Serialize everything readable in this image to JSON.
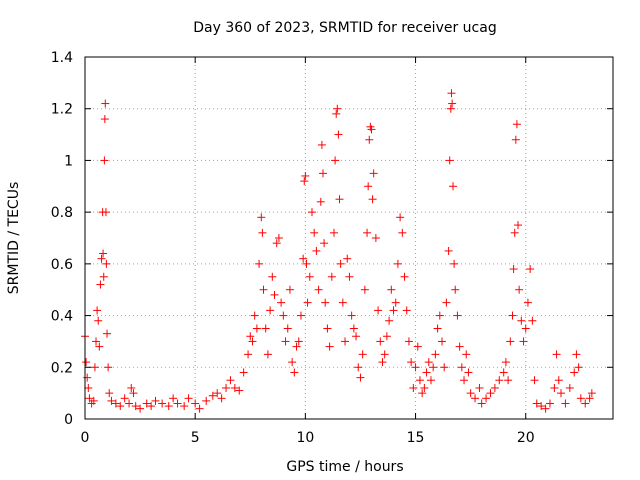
{
  "chart_data": {
    "type": "scatter",
    "title": "Day 360 of 2023, SRMTID for receiver ucag",
    "xlabel": "GPS time / hours",
    "ylabel": "SRMTID / TECUs",
    "xlim": [
      0,
      23.96
    ],
    "ylim": [
      0,
      1.4
    ],
    "xticks": [
      0,
      5,
      10,
      15,
      20
    ],
    "xtick_labels": [
      "0",
      "5",
      "10",
      "15",
      "20"
    ],
    "yticks": [
      0,
      0.2,
      0.4,
      0.6,
      0.8,
      1.0,
      1.2,
      1.4
    ],
    "ytick_labels": [
      "0",
      "0.2",
      "0.4",
      "0.6",
      "0.8",
      "1",
      "1.2",
      "1.4"
    ],
    "grid": true,
    "marker": "+",
    "marker_color": "#ff0000",
    "series": [
      {
        "name": "ucag",
        "points": [
          [
            0.0,
            0.32
          ],
          [
            0.05,
            0.22
          ],
          [
            0.1,
            0.16
          ],
          [
            0.15,
            0.12
          ],
          [
            0.2,
            0.08
          ],
          [
            0.3,
            0.06
          ],
          [
            0.4,
            0.07
          ],
          [
            0.45,
            0.2
          ],
          [
            0.5,
            0.3
          ],
          [
            0.55,
            0.42
          ],
          [
            0.6,
            0.38
          ],
          [
            0.65,
            0.28
          ],
          [
            0.7,
            0.52
          ],
          [
            0.75,
            0.62
          ],
          [
            0.8,
            0.8
          ],
          [
            0.82,
            0.64
          ],
          [
            0.85,
            0.55
          ],
          [
            0.88,
            1.0
          ],
          [
            0.9,
            1.16
          ],
          [
            0.92,
            1.22
          ],
          [
            0.95,
            0.8
          ],
          [
            0.97,
            0.6
          ],
          [
            1.0,
            0.33
          ],
          [
            1.05,
            0.2
          ],
          [
            1.1,
            0.1
          ],
          [
            1.2,
            0.07
          ],
          [
            1.4,
            0.06
          ],
          [
            1.6,
            0.05
          ],
          [
            1.8,
            0.08
          ],
          [
            2.0,
            0.06
          ],
          [
            2.1,
            0.12
          ],
          [
            2.2,
            0.1
          ],
          [
            2.3,
            0.05
          ],
          [
            2.5,
            0.04
          ],
          [
            2.8,
            0.06
          ],
          [
            3.0,
            0.05
          ],
          [
            3.2,
            0.07
          ],
          [
            3.5,
            0.06
          ],
          [
            3.8,
            0.05
          ],
          [
            4.0,
            0.08
          ],
          [
            4.2,
            0.06
          ],
          [
            4.5,
            0.05
          ],
          [
            4.7,
            0.08
          ],
          [
            5.0,
            0.06
          ],
          [
            5.2,
            0.04
          ],
          [
            5.5,
            0.07
          ],
          [
            5.8,
            0.09
          ],
          [
            6.0,
            0.1
          ],
          [
            6.2,
            0.08
          ],
          [
            6.4,
            0.12
          ],
          [
            6.6,
            0.15
          ],
          [
            6.8,
            0.12
          ],
          [
            7.0,
            0.11
          ],
          [
            7.2,
            0.18
          ],
          [
            7.4,
            0.25
          ],
          [
            7.5,
            0.32
          ],
          [
            7.6,
            0.3
          ],
          [
            7.7,
            0.4
          ],
          [
            7.8,
            0.35
          ],
          [
            7.9,
            0.6
          ],
          [
            8.0,
            0.78
          ],
          [
            8.05,
            0.72
          ],
          [
            8.1,
            0.5
          ],
          [
            8.2,
            0.35
          ],
          [
            8.3,
            0.25
          ],
          [
            8.4,
            0.42
          ],
          [
            8.5,
            0.55
          ],
          [
            8.6,
            0.48
          ],
          [
            8.7,
            0.68
          ],
          [
            8.8,
            0.7
          ],
          [
            8.9,
            0.45
          ],
          [
            9.0,
            0.4
          ],
          [
            9.1,
            0.3
          ],
          [
            9.2,
            0.35
          ],
          [
            9.3,
            0.5
          ],
          [
            9.4,
            0.22
          ],
          [
            9.5,
            0.18
          ],
          [
            9.6,
            0.28
          ],
          [
            9.7,
            0.3
          ],
          [
            9.8,
            0.4
          ],
          [
            9.9,
            0.62
          ],
          [
            9.95,
            0.92
          ],
          [
            10.0,
            0.94
          ],
          [
            10.05,
            0.6
          ],
          [
            10.1,
            0.45
          ],
          [
            10.2,
            0.55
          ],
          [
            10.3,
            0.8
          ],
          [
            10.4,
            0.72
          ],
          [
            10.5,
            0.65
          ],
          [
            10.6,
            0.5
          ],
          [
            10.7,
            0.84
          ],
          [
            10.75,
            1.06
          ],
          [
            10.8,
            0.95
          ],
          [
            10.85,
            0.68
          ],
          [
            10.9,
            0.45
          ],
          [
            11.0,
            0.35
          ],
          [
            11.1,
            0.28
          ],
          [
            11.2,
            0.55
          ],
          [
            11.3,
            0.72
          ],
          [
            11.35,
            1.0
          ],
          [
            11.4,
            1.18
          ],
          [
            11.45,
            1.2
          ],
          [
            11.5,
            1.1
          ],
          [
            11.55,
            0.85
          ],
          [
            11.6,
            0.6
          ],
          [
            11.7,
            0.45
          ],
          [
            11.8,
            0.3
          ],
          [
            11.9,
            0.62
          ],
          [
            12.0,
            0.55
          ],
          [
            12.1,
            0.4
          ],
          [
            12.2,
            0.35
          ],
          [
            12.3,
            0.32
          ],
          [
            12.4,
            0.2
          ],
          [
            12.5,
            0.16
          ],
          [
            12.6,
            0.25
          ],
          [
            12.7,
            0.5
          ],
          [
            12.8,
            0.72
          ],
          [
            12.85,
            0.9
          ],
          [
            12.9,
            1.08
          ],
          [
            12.95,
            1.13
          ],
          [
            13.0,
            1.12
          ],
          [
            13.05,
            0.85
          ],
          [
            13.1,
            0.95
          ],
          [
            13.2,
            0.7
          ],
          [
            13.3,
            0.42
          ],
          [
            13.4,
            0.3
          ],
          [
            13.5,
            0.22
          ],
          [
            13.6,
            0.25
          ],
          [
            13.7,
            0.32
          ],
          [
            13.8,
            0.38
          ],
          [
            13.9,
            0.5
          ],
          [
            14.0,
            0.42
          ],
          [
            14.1,
            0.45
          ],
          [
            14.2,
            0.6
          ],
          [
            14.3,
            0.78
          ],
          [
            14.4,
            0.72
          ],
          [
            14.5,
            0.55
          ],
          [
            14.6,
            0.42
          ],
          [
            14.7,
            0.3
          ],
          [
            14.8,
            0.22
          ],
          [
            14.9,
            0.12
          ],
          [
            15.0,
            0.2
          ],
          [
            15.1,
            0.28
          ],
          [
            15.2,
            0.15
          ],
          [
            15.3,
            0.1
          ],
          [
            15.4,
            0.12
          ],
          [
            15.5,
            0.18
          ],
          [
            15.6,
            0.22
          ],
          [
            15.7,
            0.15
          ],
          [
            15.8,
            0.2
          ],
          [
            15.9,
            0.25
          ],
          [
            16.0,
            0.35
          ],
          [
            16.1,
            0.4
          ],
          [
            16.2,
            0.3
          ],
          [
            16.3,
            0.2
          ],
          [
            16.4,
            0.45
          ],
          [
            16.5,
            0.65
          ],
          [
            16.55,
            1.0
          ],
          [
            16.6,
            1.2
          ],
          [
            16.63,
            1.26
          ],
          [
            16.66,
            1.22
          ],
          [
            16.7,
            0.9
          ],
          [
            16.75,
            0.6
          ],
          [
            16.8,
            0.5
          ],
          [
            16.9,
            0.4
          ],
          [
            17.0,
            0.28
          ],
          [
            17.1,
            0.2
          ],
          [
            17.2,
            0.15
          ],
          [
            17.3,
            0.25
          ],
          [
            17.4,
            0.18
          ],
          [
            17.5,
            0.1
          ],
          [
            17.7,
            0.08
          ],
          [
            17.9,
            0.12
          ],
          [
            18.0,
            0.06
          ],
          [
            18.2,
            0.08
          ],
          [
            18.4,
            0.1
          ],
          [
            18.6,
            0.12
          ],
          [
            18.8,
            0.15
          ],
          [
            19.0,
            0.18
          ],
          [
            19.1,
            0.22
          ],
          [
            19.2,
            0.15
          ],
          [
            19.3,
            0.3
          ],
          [
            19.4,
            0.4
          ],
          [
            19.45,
            0.58
          ],
          [
            19.5,
            0.72
          ],
          [
            19.55,
            1.08
          ],
          [
            19.6,
            1.14
          ],
          [
            19.65,
            0.75
          ],
          [
            19.7,
            0.5
          ],
          [
            19.8,
            0.38
          ],
          [
            19.9,
            0.3
          ],
          [
            20.0,
            0.35
          ],
          [
            20.1,
            0.45
          ],
          [
            20.2,
            0.58
          ],
          [
            20.3,
            0.38
          ],
          [
            20.4,
            0.15
          ],
          [
            20.5,
            0.06
          ],
          [
            20.7,
            0.05
          ],
          [
            20.9,
            0.04
          ],
          [
            21.1,
            0.06
          ],
          [
            21.3,
            0.12
          ],
          [
            21.4,
            0.25
          ],
          [
            21.5,
            0.15
          ],
          [
            21.6,
            0.1
          ],
          [
            21.8,
            0.06
          ],
          [
            22.0,
            0.12
          ],
          [
            22.2,
            0.18
          ],
          [
            22.3,
            0.25
          ],
          [
            22.4,
            0.2
          ],
          [
            22.5,
            0.08
          ],
          [
            22.7,
            0.06
          ],
          [
            22.9,
            0.08
          ],
          [
            23.0,
            0.1
          ]
        ]
      }
    ]
  }
}
